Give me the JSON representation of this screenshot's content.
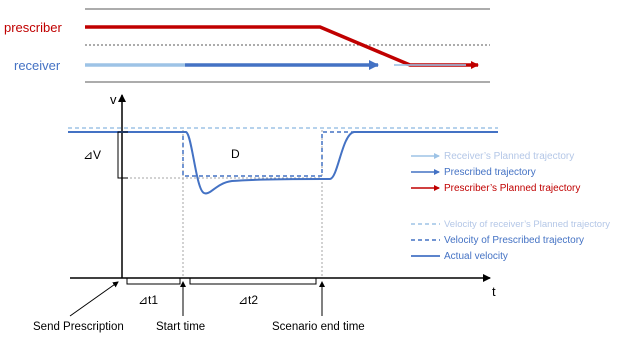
{
  "colors": {
    "prescriber_red": "#c00000",
    "receiver_blue": "#4472c4",
    "receiver_light": "#9dc3e6",
    "axis": "#000000",
    "guide": "#a6a6a6",
    "divider": "#7f7f7f",
    "label_light": "#b4c7e7"
  },
  "top_lanes": {
    "prescriber_label": "prescriber",
    "receiver_label": "receiver"
  },
  "plot": {
    "y_axis_label": "v",
    "x_axis_label": "t",
    "delta_v_label": "⊿V",
    "region_label": "D",
    "delta_t1_label": "⊿t1",
    "delta_t2_label": "⊿t2"
  },
  "events": {
    "send_prescription": "Send Prescription",
    "start_time": "Start time",
    "scenario_end_time": "Scenario end time"
  },
  "legend_arrows": [
    {
      "label": "Receiver’s Planned trajectory",
      "style": "arrow-light"
    },
    {
      "label": "Prescribed trajectory",
      "style": "arrow-blue"
    },
    {
      "label": "Prescriber’s Planned trajectory",
      "style": "arrow-red"
    }
  ],
  "legend_velocity": [
    {
      "label": "Velocity of receiver’s Planned trajectory",
      "style": "dashed-light"
    },
    {
      "label": "Velocity of Prescribed trajectory",
      "style": "dashed-blue"
    },
    {
      "label": "Actual velocity",
      "style": "solid-blue"
    }
  ]
}
